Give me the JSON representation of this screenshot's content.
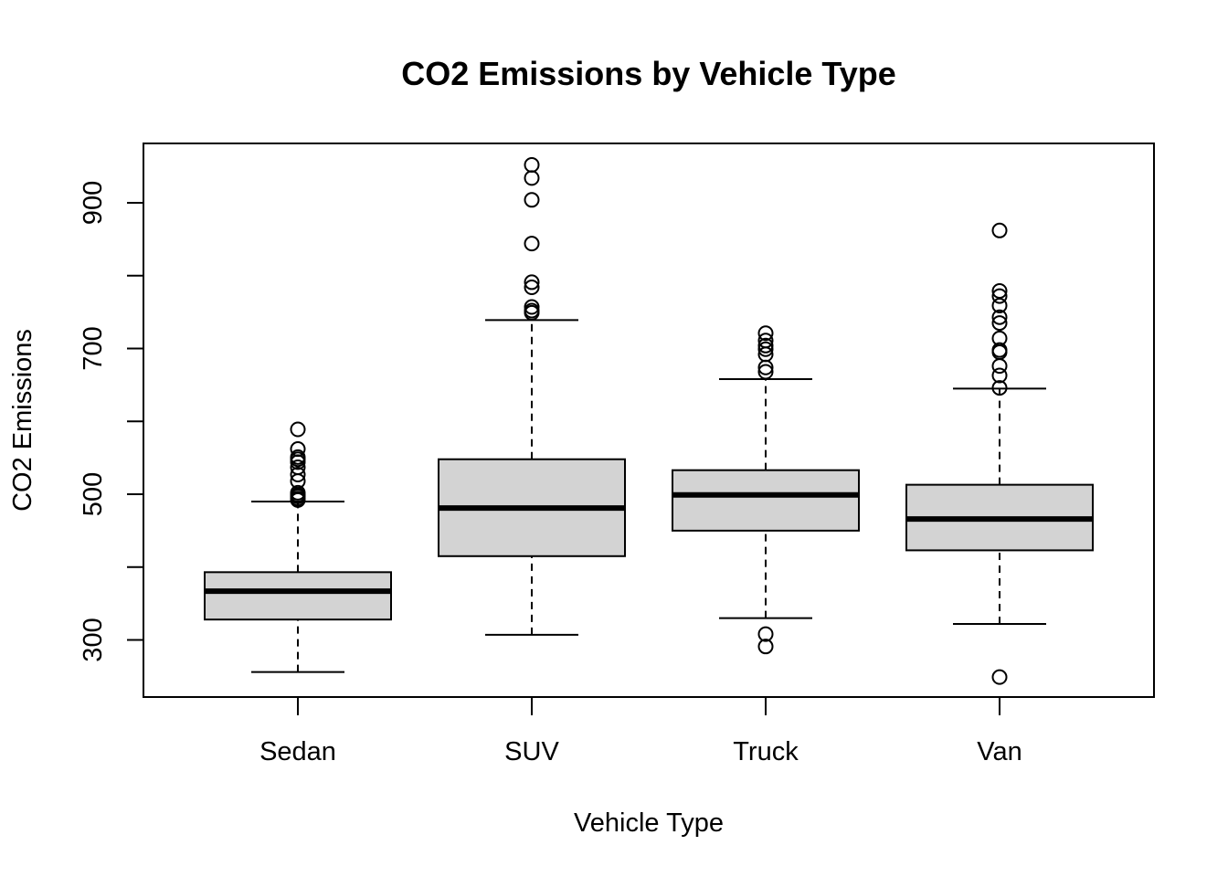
{
  "chart_data": {
    "type": "boxplot",
    "title": "CO2 Emissions by Vehicle Type",
    "xlabel": "Vehicle Type",
    "ylabel": "CO2 Emissions",
    "ylim": [
      220,
      980
    ],
    "yticks": [
      300,
      400,
      500,
      600,
      700,
      800,
      900
    ],
    "ytick_labels": [
      "300",
      "",
      "500",
      "",
      "700",
      "",
      "900"
    ],
    "grid": false,
    "legend": "none",
    "colors": {
      "box_fill": "#d3d3d3",
      "stroke": "#000000"
    },
    "categories": [
      "Sedan",
      "SUV",
      "Truck",
      "Van"
    ],
    "boxes": [
      {
        "label": "Sedan",
        "whisker_low": 256,
        "q1": 328,
        "median": 367,
        "q3": 393,
        "whisker_high": 490,
        "outliers": [
          492,
          494,
          497,
          499,
          502,
          518,
          527,
          537,
          544,
          548,
          551,
          562,
          589
        ]
      },
      {
        "label": "SUV",
        "whisker_low": 307,
        "q1": 415,
        "median": 481,
        "q3": 548,
        "whisker_high": 739,
        "outliers": [
          749,
          752,
          757,
          784,
          791,
          844,
          904,
          934,
          952
        ]
      },
      {
        "label": "Truck",
        "whisker_low": 330,
        "q1": 450,
        "median": 499,
        "q3": 533,
        "whisker_high": 658,
        "outliers": [
          291,
          308,
          668,
          674,
          692,
          699,
          704,
          711,
          721
        ]
      },
      {
        "label": "Van",
        "whisker_low": 322,
        "q1": 423,
        "median": 466,
        "q3": 513,
        "whisker_high": 645,
        "outliers": [
          249,
          646,
          663,
          676,
          695,
          698,
          714,
          735,
          743,
          759,
          772,
          779,
          862
        ]
      }
    ]
  }
}
